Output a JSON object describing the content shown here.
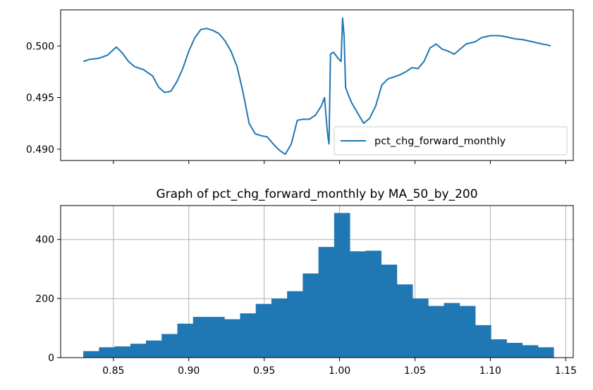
{
  "chart_data": [
    {
      "type": "line",
      "title": "",
      "xlabel": "",
      "ylabel": "",
      "xlim": [
        0.815,
        1.155
      ],
      "ylim": [
        0.4889,
        0.5035
      ],
      "xticks": [
        0.85,
        0.9,
        0.95,
        1.0,
        1.05,
        1.1,
        1.15
      ],
      "xtick_labels_visible": false,
      "yticks": [
        0.49,
        0.495,
        0.5
      ],
      "ytick_labels": [
        "0.490",
        "0.495",
        "0.500"
      ],
      "grid": false,
      "legend": {
        "placement": "lower-right",
        "entries": [
          "pct_chg_forward_monthly"
        ]
      },
      "series": [
        {
          "name": "pct_chg_forward_monthly",
          "color": "#1f77b4",
          "x": [
            0.83,
            0.834,
            0.84,
            0.846,
            0.852,
            0.856,
            0.86,
            0.864,
            0.87,
            0.876,
            0.88,
            0.884,
            0.888,
            0.892,
            0.896,
            0.9,
            0.904,
            0.908,
            0.912,
            0.916,
            0.92,
            0.924,
            0.928,
            0.932,
            0.936,
            0.94,
            0.944,
            0.948,
            0.952,
            0.956,
            0.96,
            0.964,
            0.968,
            0.972,
            0.976,
            0.98,
            0.984,
            0.988,
            0.99,
            0.992,
            0.993,
            0.994,
            0.996,
            0.999,
            1.001,
            1.002,
            1.003,
            1.004,
            1.006,
            1.008,
            1.012,
            1.016,
            1.02,
            1.024,
            1.028,
            1.032,
            1.036,
            1.04,
            1.044,
            1.048,
            1.052,
            1.056,
            1.06,
            1.064,
            1.068,
            1.072,
            1.076,
            1.08,
            1.084,
            1.09,
            1.094,
            1.1,
            1.106,
            1.11,
            1.116,
            1.122,
            1.128,
            1.134,
            1.138,
            1.14
          ],
          "y": [
            0.4985,
            0.4987,
            0.4988,
            0.4991,
            0.4999,
            0.4993,
            0.4985,
            0.498,
            0.4977,
            0.4971,
            0.496,
            0.4955,
            0.4956,
            0.4965,
            0.4978,
            0.4995,
            0.5008,
            0.5016,
            0.5017,
            0.5015,
            0.5012,
            0.5005,
            0.4995,
            0.498,
            0.4955,
            0.4925,
            0.4915,
            0.4913,
            0.4912,
            0.4905,
            0.4899,
            0.4895,
            0.4905,
            0.4928,
            0.4929,
            0.4929,
            0.4933,
            0.4942,
            0.495,
            0.4915,
            0.4905,
            0.4992,
            0.4994,
            0.4988,
            0.4985,
            0.5027,
            0.501,
            0.496,
            0.4952,
            0.4945,
            0.4935,
            0.4925,
            0.493,
            0.4942,
            0.4962,
            0.4968,
            0.497,
            0.4972,
            0.4975,
            0.4979,
            0.4978,
            0.4985,
            0.4998,
            0.5002,
            0.4997,
            0.4995,
            0.4992,
            0.4997,
            0.5002,
            0.5004,
            0.5008,
            0.501,
            0.501,
            0.5009,
            0.5007,
            0.5006,
            0.5004,
            0.5002,
            0.5001,
            0.5
          ]
        }
      ]
    },
    {
      "type": "bar",
      "title": "Graph of pct_chg_forward_monthly by MA_50_by_200",
      "xlabel": "",
      "ylabel": "",
      "xlim": [
        0.815,
        1.155
      ],
      "ylim": [
        0,
        515
      ],
      "xticks": [
        0.85,
        0.9,
        0.95,
        1.0,
        1.05,
        1.1,
        1.15
      ],
      "xtick_labels": [
        "0.85",
        "0.90",
        "0.95",
        "1.00",
        "1.05",
        "1.10",
        "1.15"
      ],
      "yticks": [
        0,
        200,
        400
      ],
      "ytick_labels": [
        "0",
        "200",
        "400"
      ],
      "grid": true,
      "color": "#1f77b4",
      "bin_edges": [
        0.83,
        0.8404,
        0.8508,
        0.8612,
        0.8716,
        0.882,
        0.8924,
        0.9028,
        0.9132,
        0.9236,
        0.934,
        0.9444,
        0.9548,
        0.9652,
        0.9756,
        0.986,
        0.9964,
        1.0068,
        1.0172,
        1.0276,
        1.038,
        1.0484,
        1.0588,
        1.0692,
        1.0796,
        1.09,
        1.1004,
        1.1108,
        1.1212,
        1.1316,
        1.142
      ],
      "values": [
        22,
        35,
        38,
        47,
        58,
        80,
        115,
        138,
        138,
        130,
        150,
        182,
        200,
        225,
        285,
        375,
        490,
        360,
        362,
        315,
        248,
        200,
        175,
        185,
        175,
        110,
        62,
        50,
        42,
        35
      ]
    }
  ]
}
